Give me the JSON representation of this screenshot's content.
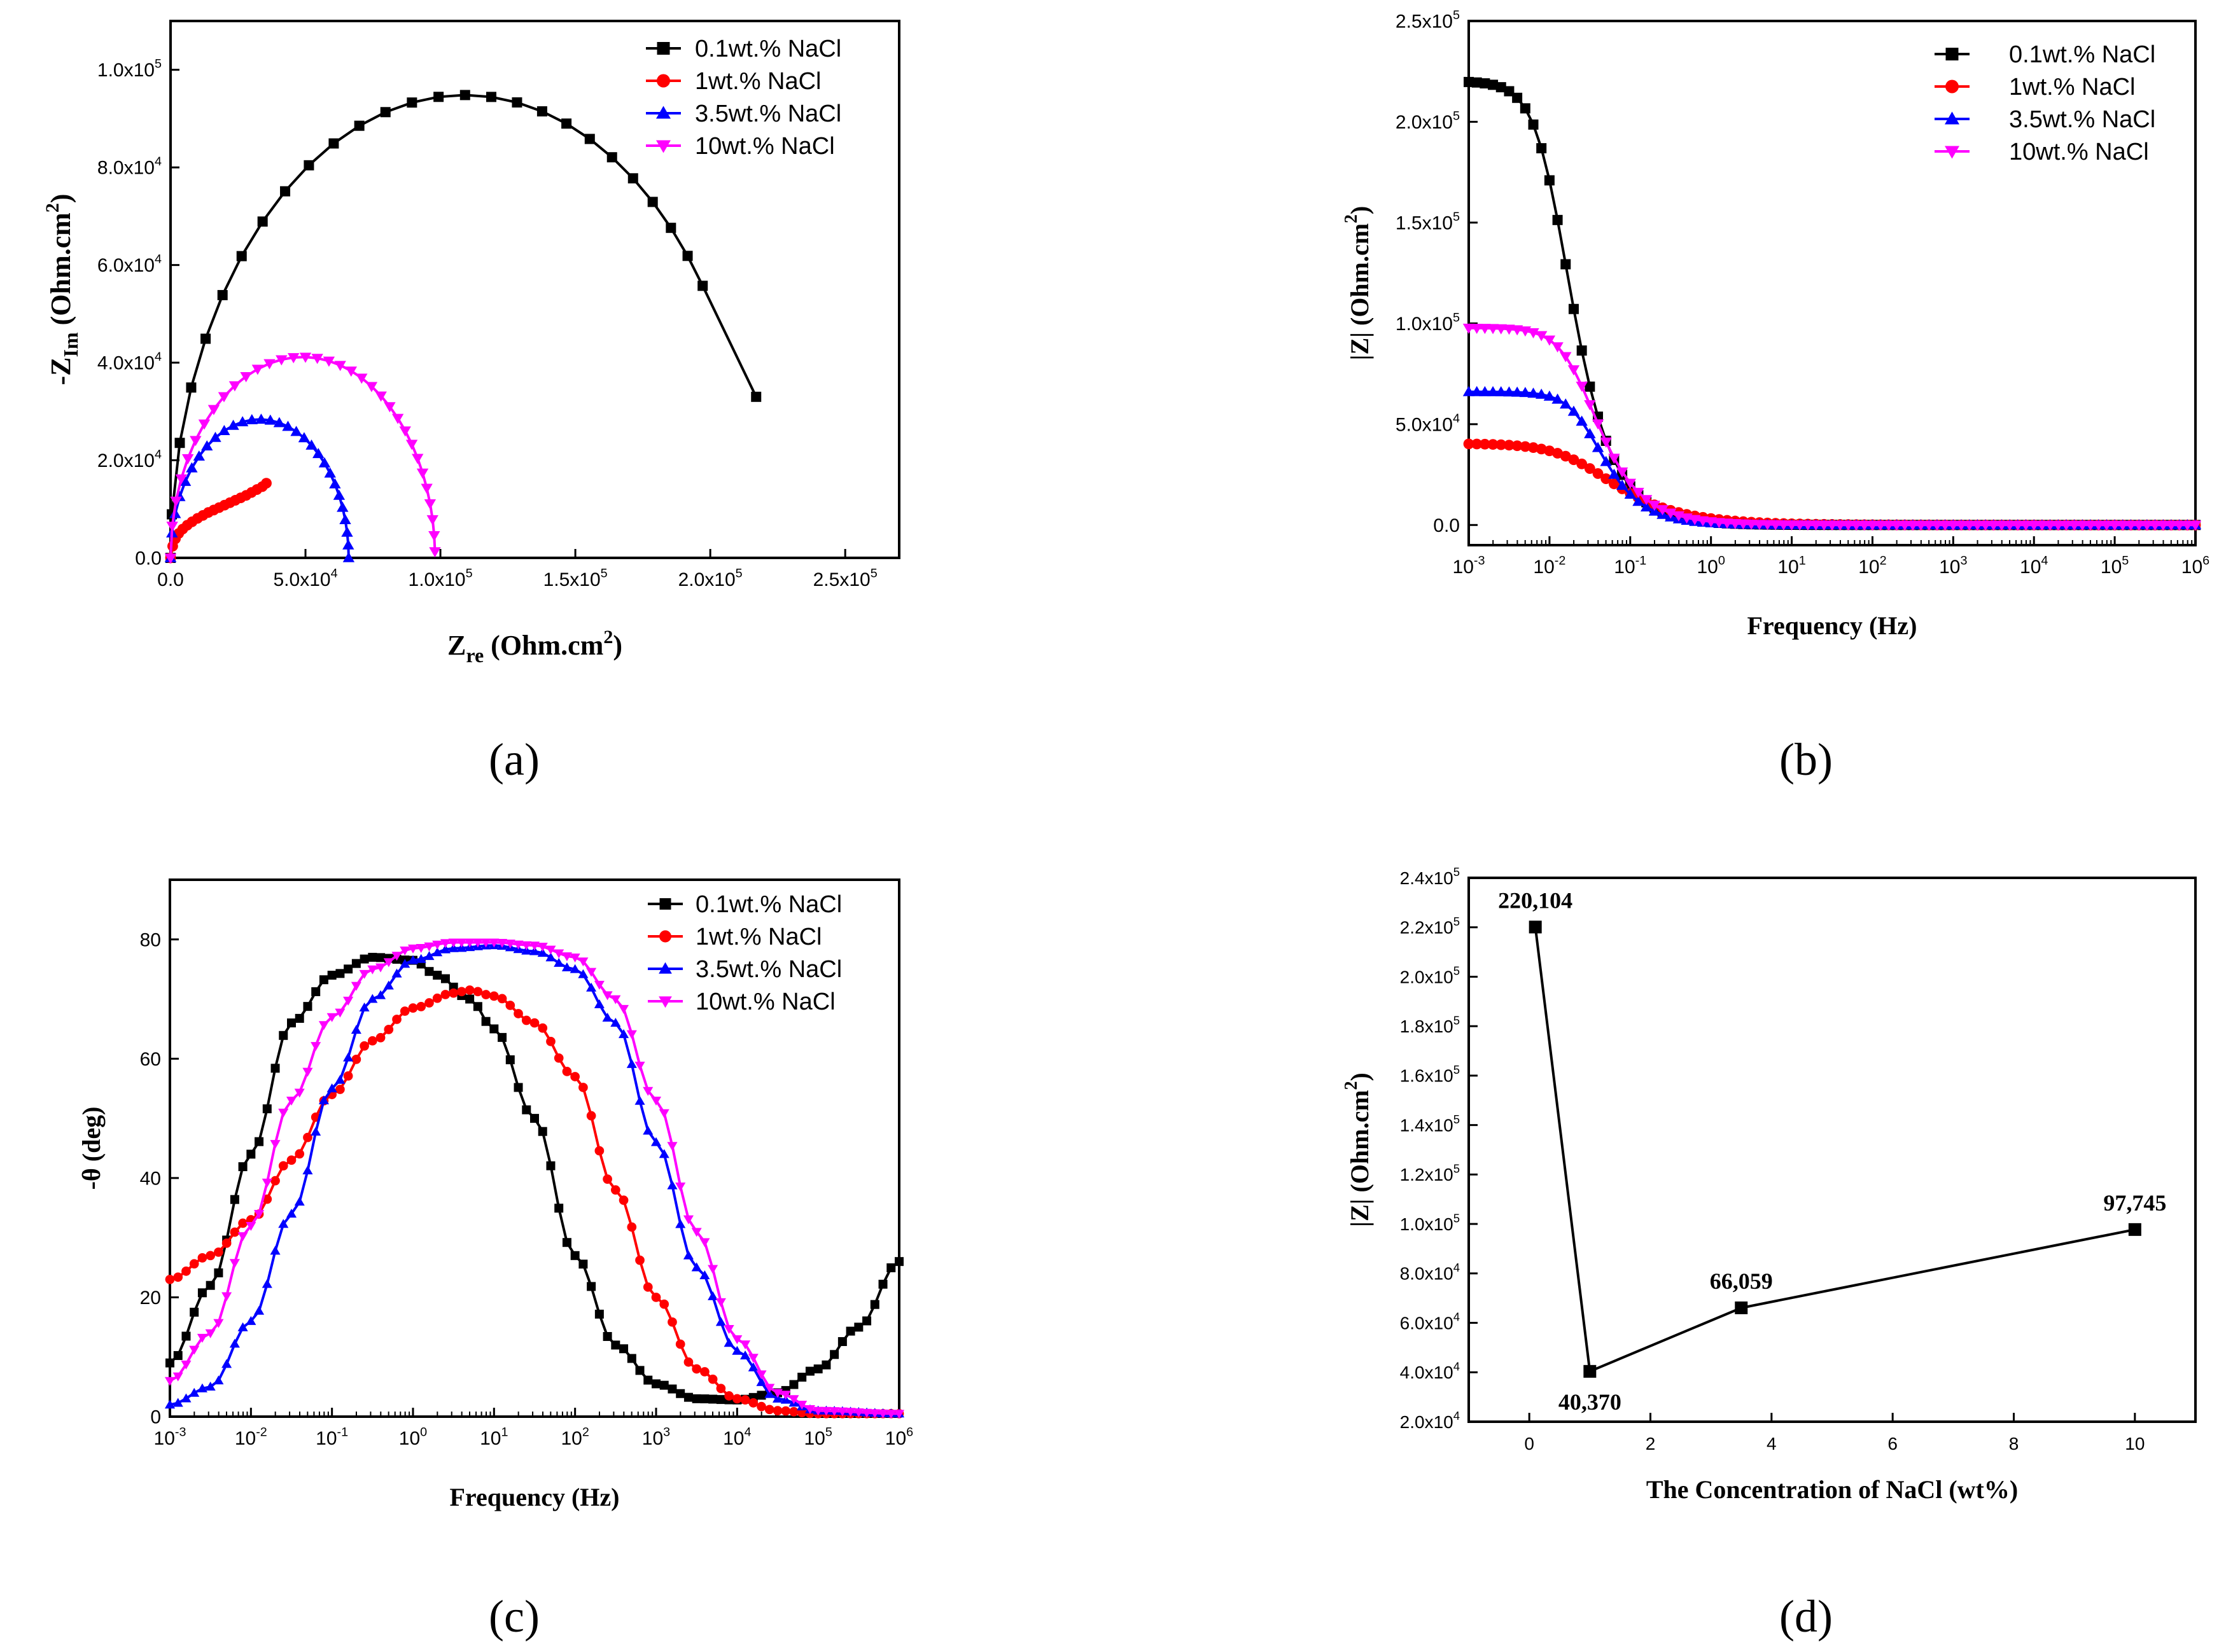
{
  "colors": {
    "s01": "#000000",
    "s1": "#ff0000",
    "s35": "#0000ff",
    "s10": "#ff00ff",
    "axis": "#000000",
    "background": "#ffffff"
  },
  "panel_labels": [
    "(a)",
    "(b)",
    "(c)",
    "(d)"
  ],
  "chart_data": [
    {
      "panel": "(a)",
      "type": "scatter",
      "subtype": "nyquist",
      "xlabel": {
        "main": "Z",
        "sub": "re",
        "units": " (Ohm.cm",
        "sup": "2",
        "close": ")"
      },
      "ylabel": {
        "main": "-Z",
        "sub": "Im",
        "units": " (Ohm.cm",
        "sup": "2",
        "close": ")"
      },
      "xlim": [
        0,
        270000
      ],
      "ylim": [
        0,
        110000
      ],
      "xticks": [
        {
          "v": 0,
          "base": "0.0",
          "exp": ""
        },
        {
          "v": 50000,
          "base": "5.0x10",
          "exp": "4"
        },
        {
          "v": 100000,
          "base": "1.0x10",
          "exp": "5"
        },
        {
          "v": 150000,
          "base": "1.5x10",
          "exp": "5"
        },
        {
          "v": 200000,
          "base": "2.0x10",
          "exp": "5"
        },
        {
          "v": 250000,
          "base": "2.5x10",
          "exp": "5"
        }
      ],
      "yticks": [
        {
          "v": 0,
          "base": "0.0",
          "exp": ""
        },
        {
          "v": 20000,
          "base": "2.0x10",
          "exp": "4"
        },
        {
          "v": 40000,
          "base": "4.0x10",
          "exp": "4"
        },
        {
          "v": 60000,
          "base": "6.0x10",
          "exp": "4"
        },
        {
          "v": 80000,
          "base": "8.0x10",
          "exp": "4"
        },
        {
          "v": 100000,
          "base": "1.0x10",
          "exp": "5"
        }
      ],
      "legend_position": "top-right",
      "series": [
        {
          "name": "0.1wt.% NaCl",
          "marker": "square",
          "color": "#000000",
          "style": "arc",
          "arc": {
            "center": 109000,
            "radius": 109000,
            "vy": 0.87,
            "t_start": 0.03,
            "t_end": 0.8,
            "n": 26,
            "anchor": [
              217000,
              33000
            ]
          }
        },
        {
          "name": "1wt.% NaCl",
          "marker": "circle",
          "color": "#ff0000",
          "style": "pts",
          "points": [
            [
              0,
              0
            ],
            [
              800,
              2400
            ],
            [
              1800,
              3900
            ],
            [
              3000,
              5000
            ],
            [
              4500,
              5900
            ],
            [
              6200,
              6700
            ],
            [
              8000,
              7400
            ],
            [
              10000,
              8100
            ],
            [
              12000,
              8700
            ],
            [
              14000,
              9300
            ],
            [
              16000,
              9800
            ],
            [
              18000,
              10300
            ],
            [
              20000,
              10800
            ],
            [
              22000,
              11300
            ],
            [
              24000,
              11800
            ],
            [
              26000,
              12300
            ],
            [
              28000,
              12800
            ],
            [
              30000,
              13400
            ],
            [
              32000,
              14000
            ],
            [
              34000,
              14600
            ],
            [
              35500,
              15300
            ]
          ]
        },
        {
          "name": "3.5wt.% NaCl",
          "marker": "triangle-up",
          "color": "#0000ff",
          "style": "arc",
          "arc": {
            "center": 33000,
            "radius": 33000,
            "vy": 0.86,
            "t_start": 0.0,
            "t_end": 1.0,
            "n": 30
          }
        },
        {
          "name": "10wt.% NaCl",
          "marker": "triangle-down",
          "color": "#ff00ff",
          "style": "arc",
          "arc": {
            "center": 49000,
            "radius": 49000,
            "vy": 0.84,
            "t_start": 0.0,
            "t_end": 0.99,
            "n": 34
          }
        }
      ]
    },
    {
      "panel": "(b)",
      "type": "line",
      "subtype": "bode-magnitude",
      "xscale": "log",
      "xlabel": "Frequency (Hz)",
      "ylabel": {
        "main": "|Z| (Ohm.cm",
        "sup": "2",
        "close": ")"
      },
      "xlim": [
        -3,
        6
      ],
      "ylim": [
        -10000,
        250000
      ],
      "xticks": [
        {
          "v": -3,
          "base": "10",
          "exp": "-3"
        },
        {
          "v": -2,
          "base": "10",
          "exp": "-2"
        },
        {
          "v": -1,
          "base": "10",
          "exp": "-1"
        },
        {
          "v": 0,
          "base": "10",
          "exp": "0"
        },
        {
          "v": 1,
          "base": "10",
          "exp": "1"
        },
        {
          "v": 2,
          "base": "10",
          "exp": "2"
        },
        {
          "v": 3,
          "base": "10",
          "exp": "3"
        },
        {
          "v": 4,
          "base": "10",
          "exp": "4"
        },
        {
          "v": 5,
          "base": "10",
          "exp": "5"
        },
        {
          "v": 6,
          "base": "10",
          "exp": "6"
        }
      ],
      "yticks": [
        {
          "v": 0,
          "base": "0.0",
          "exp": ""
        },
        {
          "v": 50000,
          "base": "5.0x10",
          "exp": "4"
        },
        {
          "v": 100000,
          "base": "1.0x10",
          "exp": "5"
        },
        {
          "v": 150000,
          "base": "1.5x10",
          "exp": "5"
        },
        {
          "v": 200000,
          "base": "2.0x10",
          "exp": "5"
        },
        {
          "v": 250000,
          "base": "2.5x10",
          "exp": "5"
        }
      ],
      "legend_position": "top-right",
      "marker_step": 0.1,
      "series": [
        {
          "name": "0.1wt.% NaCl",
          "marker": "square",
          "color": "#000000",
          "R": 220104,
          "fc": 0.012,
          "n": 1.15
        },
        {
          "name": "1wt.% NaCl",
          "marker": "circle",
          "color": "#ff0000",
          "R": 40370,
          "fc": 0.03,
          "n": 0.72
        },
        {
          "name": "3.5wt.% NaCl",
          "marker": "triangle-up",
          "color": "#0000ff",
          "R": 66059,
          "fc": 0.03,
          "n": 1.2
        },
        {
          "name": "10wt.% NaCl",
          "marker": "triangle-down",
          "color": "#ff00ff",
          "R": 97745,
          "fc": 0.025,
          "n": 1.1
        }
      ]
    },
    {
      "panel": "(c)",
      "type": "line",
      "subtype": "bode-phase",
      "xscale": "log",
      "xlabel": "Frequency (Hz)",
      "ylabel": "-θ (deg)",
      "xlim": [
        -3,
        6
      ],
      "ylim": [
        0,
        90
      ],
      "xticks": [
        {
          "v": -3,
          "base": "10",
          "exp": "-3"
        },
        {
          "v": -2,
          "base": "10",
          "exp": "-2"
        },
        {
          "v": -1,
          "base": "10",
          "exp": "-1"
        },
        {
          "v": 0,
          "base": "10",
          "exp": "0"
        },
        {
          "v": 1,
          "base": "10",
          "exp": "1"
        },
        {
          "v": 2,
          "base": "10",
          "exp": "2"
        },
        {
          "v": 3,
          "base": "10",
          "exp": "3"
        },
        {
          "v": 4,
          "base": "10",
          "exp": "4"
        },
        {
          "v": 5,
          "base": "10",
          "exp": "5"
        },
        {
          "v": 6,
          "base": "10",
          "exp": "6"
        }
      ],
      "yticks": [
        {
          "v": 0,
          "base": "0",
          "exp": ""
        },
        {
          "v": 20,
          "base": "20",
          "exp": ""
        },
        {
          "v": 40,
          "base": "40",
          "exp": ""
        },
        {
          "v": 60,
          "base": "60",
          "exp": ""
        },
        {
          "v": 80,
          "base": "80",
          "exp": ""
        }
      ],
      "legend_position": "top-right",
      "marker_step": 0.1,
      "series": [
        {
          "name": "0.1wt.% NaCl",
          "marker": "square",
          "color": "#000000",
          "points": [
            [
              -3,
              9
            ],
            [
              -2.5,
              22
            ],
            [
              -2,
              44
            ],
            [
              -1.5,
              66
            ],
            [
              -1,
              74
            ],
            [
              -0.5,
              77
            ],
            [
              0,
              76.5
            ],
            [
              0.3,
              74
            ],
            [
              0.7,
              70
            ],
            [
              1,
              65
            ],
            [
              1.5,
              50
            ],
            [
              2,
              27
            ],
            [
              2.5,
              12
            ],
            [
              3,
              5.5
            ],
            [
              3.5,
              3
            ],
            [
              4,
              2.8
            ],
            [
              4.5,
              4
            ],
            [
              5,
              8
            ],
            [
              5.5,
              15
            ],
            [
              6,
              26
            ]
          ]
        },
        {
          "name": "1wt.% NaCl",
          "marker": "circle",
          "color": "#ff0000",
          "points": [
            [
              -3,
              23
            ],
            [
              -2.5,
              27
            ],
            [
              -2,
              33
            ],
            [
              -1.5,
              43
            ],
            [
              -1,
              54
            ],
            [
              -0.5,
              63
            ],
            [
              0,
              68.5
            ],
            [
              0.5,
              71
            ],
            [
              0.7,
              71.5
            ],
            [
              1,
              70.5
            ],
            [
              1.5,
              66
            ],
            [
              2,
              57
            ],
            [
              2.5,
              38
            ],
            [
              3,
              20
            ],
            [
              3.5,
              8
            ],
            [
              4,
              3
            ],
            [
              4.5,
              1
            ],
            [
              5,
              0.5
            ],
            [
              6,
              0.5
            ]
          ]
        },
        {
          "name": "3.5wt.% NaCl",
          "marker": "triangle-up",
          "color": "#0000ff",
          "points": [
            [
              -3,
              2
            ],
            [
              -2.5,
              5
            ],
            [
              -2,
              16
            ],
            [
              -1.5,
              34
            ],
            [
              -1,
              55
            ],
            [
              -0.5,
              70
            ],
            [
              0,
              76.5
            ],
            [
              0.5,
              78.5
            ],
            [
              1,
              79
            ],
            [
              1.5,
              78
            ],
            [
              2,
              75
            ],
            [
              2.5,
              66
            ],
            [
              3,
              46
            ],
            [
              3.5,
              25
            ],
            [
              4,
              11
            ],
            [
              4.5,
              3
            ],
            [
              5,
              1
            ],
            [
              6,
              0.5
            ]
          ]
        },
        {
          "name": "10wt.% NaCl",
          "marker": "triangle-down",
          "color": "#ff00ff",
          "points": [
            [
              -3,
              6
            ],
            [
              -2.5,
              14
            ],
            [
              -2,
              32
            ],
            [
              -1.5,
              53
            ],
            [
              -1,
              67
            ],
            [
              -0.5,
              75
            ],
            [
              0,
              78.5
            ],
            [
              0.5,
              79.5
            ],
            [
              1,
              79.5
            ],
            [
              1.5,
              79
            ],
            [
              2,
              77
            ],
            [
              2.5,
              70
            ],
            [
              3,
              53
            ],
            [
              3.5,
              31
            ],
            [
              4,
              13
            ],
            [
              4.5,
              4
            ],
            [
              5,
              1
            ],
            [
              6,
              0.5
            ]
          ]
        }
      ]
    },
    {
      "panel": "(d)",
      "type": "line",
      "subtype": "line-with-markers",
      "xlabel": "The Concentration of NaCl (wt%)",
      "ylabel": {
        "main": "|Z| (Ohm.cm",
        "sup": "2",
        "close": ")"
      },
      "xlim": [
        -1,
        11
      ],
      "ylim": [
        20000,
        240000
      ],
      "xticks": [
        {
          "v": 0,
          "base": "0",
          "exp": ""
        },
        {
          "v": 2,
          "base": "2",
          "exp": ""
        },
        {
          "v": 4,
          "base": "4",
          "exp": ""
        },
        {
          "v": 6,
          "base": "6",
          "exp": ""
        },
        {
          "v": 8,
          "base": "8",
          "exp": ""
        },
        {
          "v": 10,
          "base": "10",
          "exp": ""
        }
      ],
      "yticks": [
        {
          "v": 20000,
          "base": "2.0x10",
          "exp": "4"
        },
        {
          "v": 40000,
          "base": "4.0x10",
          "exp": "4"
        },
        {
          "v": 60000,
          "base": "6.0x10",
          "exp": "4"
        },
        {
          "v": 80000,
          "base": "8.0x10",
          "exp": "4"
        },
        {
          "v": 100000,
          "base": "1.0x10",
          "exp": "5"
        },
        {
          "v": 120000,
          "base": "1.2x10",
          "exp": "5"
        },
        {
          "v": 140000,
          "base": "1.4x10",
          "exp": "5"
        },
        {
          "v": 160000,
          "base": "1.6x10",
          "exp": "5"
        },
        {
          "v": 180000,
          "base": "1.8x10",
          "exp": "5"
        },
        {
          "v": 200000,
          "base": "2.0x10",
          "exp": "5"
        },
        {
          "v": 220000,
          "base": "2.2x10",
          "exp": "5"
        },
        {
          "v": 240000,
          "base": "2.4x10",
          "exp": "5"
        }
      ],
      "series": [
        {
          "name": "|Z|",
          "marker": "square",
          "color": "#000000",
          "x": [
            0.1,
            1,
            3.5,
            10
          ],
          "y": [
            220104,
            40370,
            66059,
            97745
          ]
        }
      ],
      "data_labels": [
        {
          "text": "220,104",
          "x": 0.1,
          "y": 220104,
          "place": "above"
        },
        {
          "text": "40,370",
          "x": 1,
          "y": 40370,
          "place": "below"
        },
        {
          "text": "66,059",
          "x": 3.5,
          "y": 66059,
          "place": "above"
        },
        {
          "text": "97,745",
          "x": 10,
          "y": 97745,
          "place": "above"
        }
      ]
    }
  ]
}
